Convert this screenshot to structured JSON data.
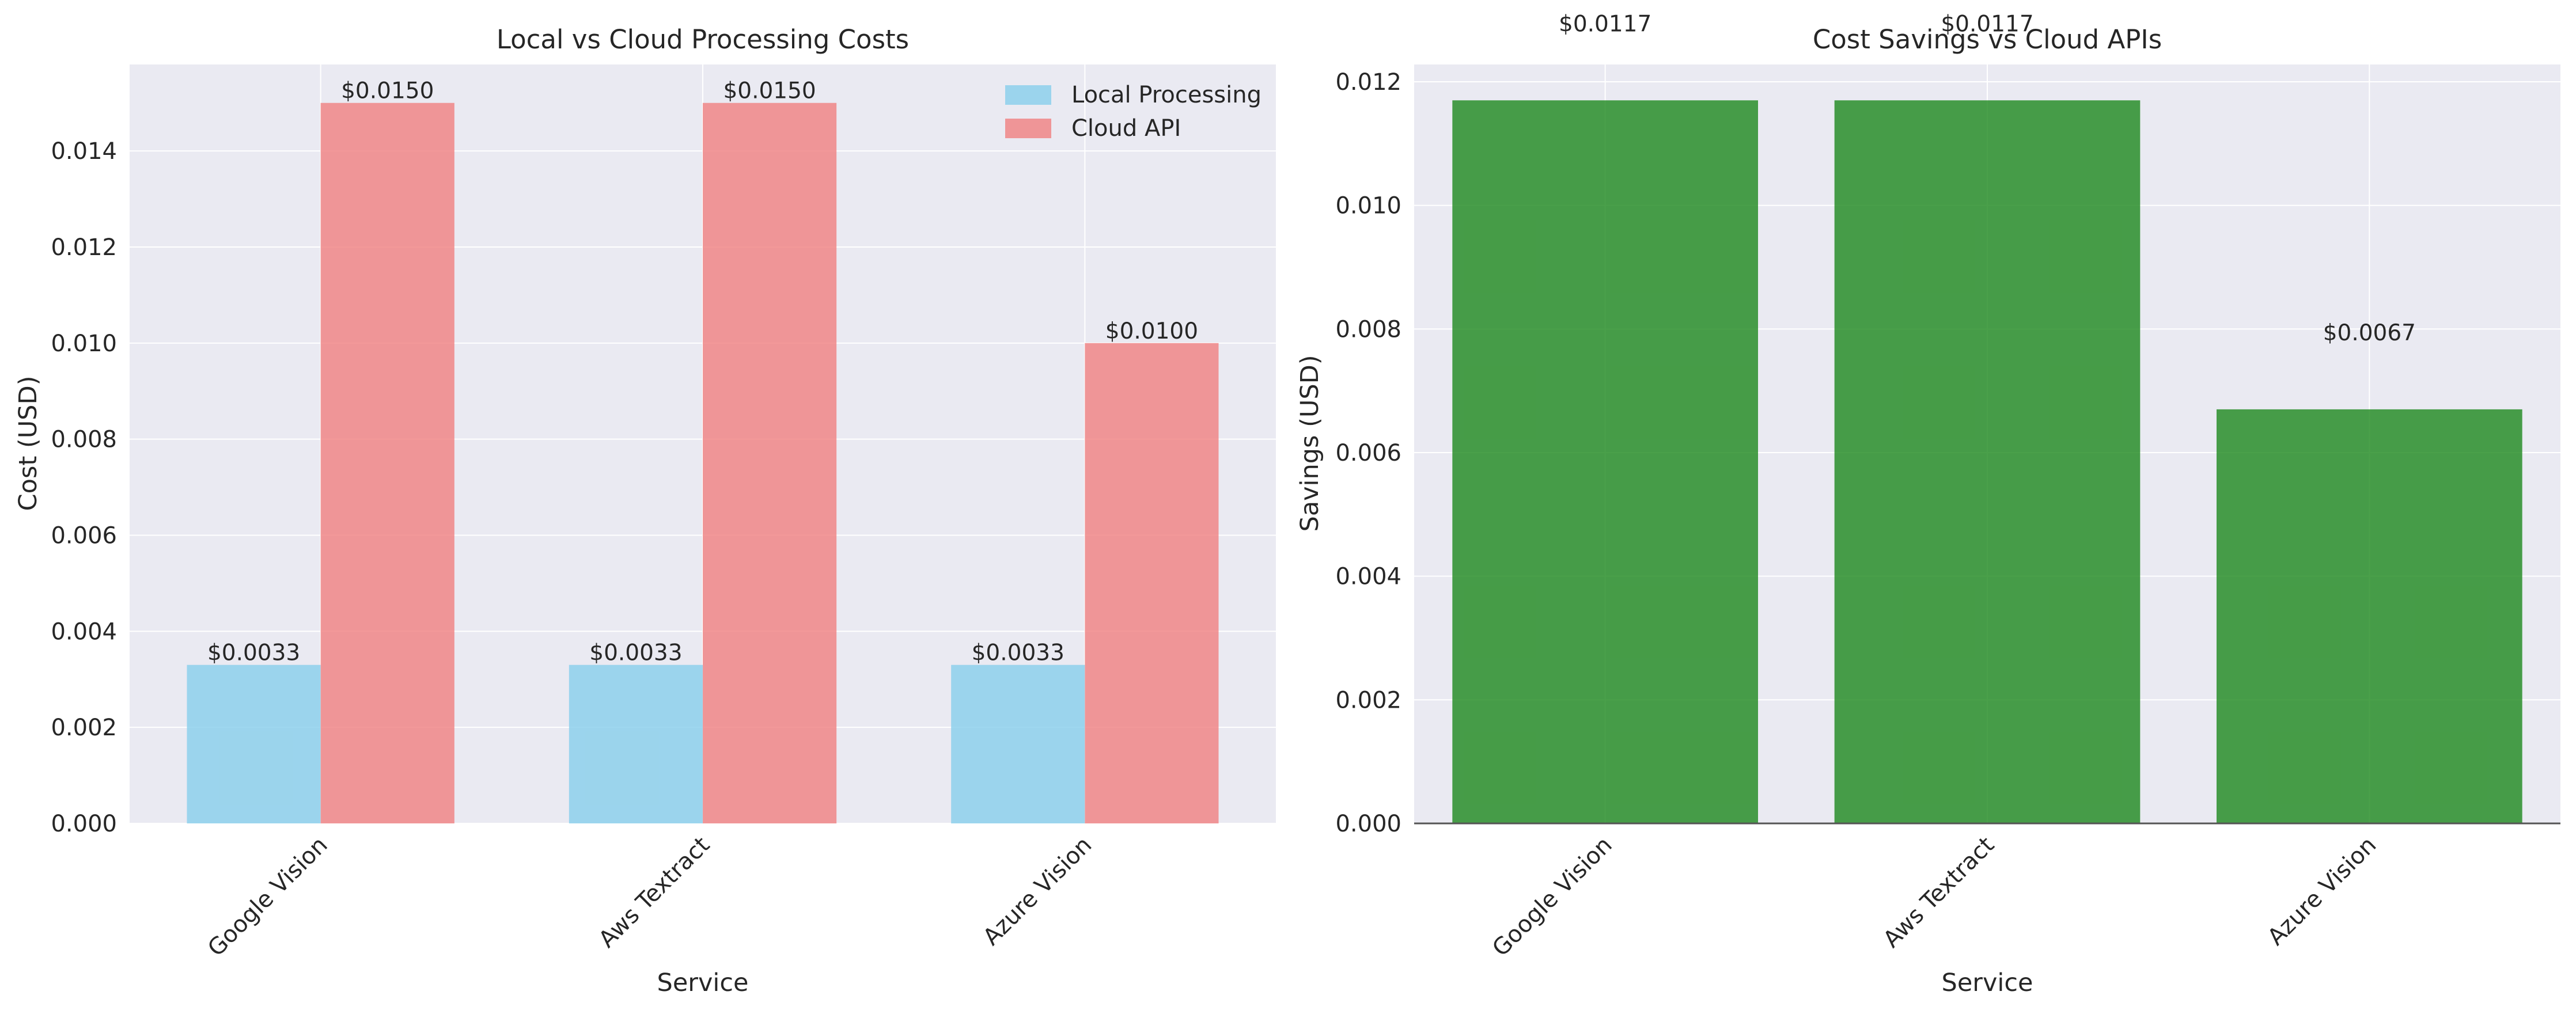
{
  "chart_data": [
    {
      "type": "bar",
      "title": "Local vs Cloud Processing Costs",
      "xlabel": "Service",
      "ylabel": "Cost (USD)",
      "categories": [
        "Google Vision",
        "Aws Textract",
        "Azure Vision"
      ],
      "series": [
        {
          "name": "Local Processing",
          "values": [
            0.0033,
            0.0033,
            0.0033
          ],
          "labels": [
            "$0.0033",
            "$0.0033",
            "$0.0033"
          ],
          "color": "#87ceeb"
        },
        {
          "name": "Cloud API",
          "values": [
            0.015,
            0.015,
            0.01
          ],
          "labels": [
            "$0.0150",
            "$0.0150",
            "$0.0100"
          ],
          "color": "#f08080"
        }
      ],
      "ylim": [
        0,
        0.0158
      ],
      "yticks": [
        "0.000",
        "0.002",
        "0.004",
        "0.006",
        "0.008",
        "0.010",
        "0.012",
        "0.014"
      ],
      "grid": true,
      "legend": "top-right",
      "background": "#eaeaf2"
    },
    {
      "type": "bar",
      "title": "Cost Savings vs Cloud APIs",
      "xlabel": "Service",
      "ylabel": "Savings (USD)",
      "categories": [
        "Google Vision",
        "Aws Textract",
        "Azure Vision"
      ],
      "values": [
        0.0117,
        0.0117,
        0.0067
      ],
      "labels": [
        "$0.0117",
        "$0.0117",
        "$0.0067"
      ],
      "color": "#228b22",
      "ylim": [
        0,
        0.01228
      ],
      "yticks": [
        "0.000",
        "0.002",
        "0.004",
        "0.006",
        "0.008",
        "0.010",
        "0.012"
      ],
      "grid": true,
      "background": "#eaeaf2"
    }
  ]
}
